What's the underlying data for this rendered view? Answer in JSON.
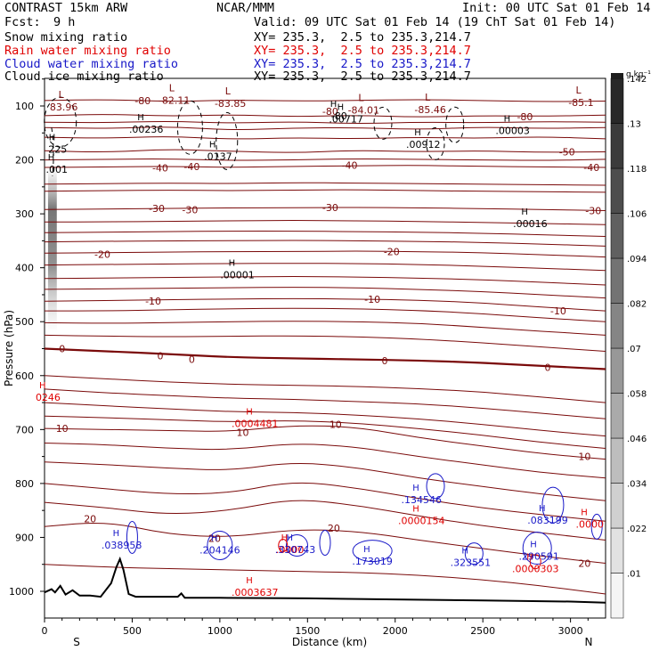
{
  "header": {
    "title": "CONTRAST 15km ARW",
    "center": "NCAR/MMM",
    "init": "Init: 00 UTC Sat 01 Feb 14",
    "fcst_label": "Fcst:",
    "fcst_value": "9 h",
    "valid": "Valid: 09 UTC Sat 01 Feb 14 (19 ChT Sat 01 Feb 14)",
    "fields": [
      {
        "name": "Snow mixing ratio",
        "xy": "XY= 235.3,  2.5 to 235.3,214.7",
        "color": "#000000"
      },
      {
        "name": "Rain water mixing ratio",
        "xy": "XY= 235.3,  2.5 to 235.3,214.7",
        "color": "#e00000"
      },
      {
        "name": "Cloud water mixing ratio",
        "xy": "XY= 235.3,  2.5 to 235.3,214.7",
        "color": "#1818c8"
      },
      {
        "name": "Cloud ice mixing ratio",
        "xy": "XY= 235.3,  2.5 to 235.3,214.7",
        "color": "#000000"
      }
    ]
  },
  "chart_data": {
    "type": "cross-section",
    "xlabel": "Distance (km)",
    "ylabel": "Pressure (hPa)",
    "xlim": [
      0,
      3200
    ],
    "ylim": [
      1060,
      50
    ],
    "xticks": [
      0,
      500,
      1000,
      1500,
      2000,
      2500,
      3000
    ],
    "yticks": [
      100,
      200,
      300,
      400,
      500,
      600,
      700,
      800,
      900,
      1000
    ],
    "x_end_labels": {
      "left": "S",
      "right": "N"
    },
    "colorbar": {
      "unit": "g kg⁻¹",
      "ticks": [
        ".01",
        ".022",
        ".034",
        ".046",
        ".058",
        ".07",
        ".082",
        ".094",
        ".106",
        ".118",
        ".13",
        ".142"
      ]
    },
    "temperature_contours_C": [
      -80,
      -70,
      -60,
      -50,
      -40,
      -30,
      -20,
      -10,
      0,
      10,
      20
    ],
    "temperature_labels": [
      {
        "text": "-80",
        "x": 560,
        "p": 90
      },
      {
        "text": "-80",
        "x": 2740,
        "p": 120
      },
      {
        "text": "-80",
        "x": 1630,
        "p": 110
      },
      {
        "text": "-50",
        "x": 2980,
        "p": 185
      },
      {
        "text": "-40",
        "x": 660,
        "p": 215
      },
      {
        "text": "-40",
        "x": 840,
        "p": 212
      },
      {
        "text": "-40",
        "x": 1740,
        "p": 210
      },
      {
        "text": "-40",
        "x": 3120,
        "p": 214
      },
      {
        "text": "-30",
        "x": 640,
        "p": 290
      },
      {
        "text": "-30",
        "x": 830,
        "p": 292
      },
      {
        "text": "-30",
        "x": 1630,
        "p": 288
      },
      {
        "text": "-30",
        "x": 3130,
        "p": 294
      },
      {
        "text": "-20",
        "x": 330,
        "p": 375
      },
      {
        "text": "-20",
        "x": 1980,
        "p": 370
      },
      {
        "text": "-10",
        "x": 620,
        "p": 462
      },
      {
        "text": "-10",
        "x": 1870,
        "p": 458
      },
      {
        "text": "-10",
        "x": 2930,
        "p": 480
      },
      {
        "text": "0",
        "x": 100,
        "p": 550
      },
      {
        "text": "0",
        "x": 660,
        "p": 563
      },
      {
        "text": "0",
        "x": 840,
        "p": 570
      },
      {
        "text": "0",
        "x": 1940,
        "p": 572
      },
      {
        "text": "0",
        "x": 2870,
        "p": 585
      },
      {
        "text": "10",
        "x": 100,
        "p": 698
      },
      {
        "text": "10",
        "x": 1130,
        "p": 705
      },
      {
        "text": "10",
        "x": 1660,
        "p": 690
      },
      {
        "text": "10",
        "x": 3080,
        "p": 750
      },
      {
        "text": "20",
        "x": 260,
        "p": 865
      },
      {
        "text": "20",
        "x": 970,
        "p": 902
      },
      {
        "text": "20",
        "x": 1650,
        "p": 883
      },
      {
        "text": "20",
        "x": 3080,
        "p": 948
      }
    ],
    "low_labels": [
      {
        "label": "L",
        "value": "83.96",
        "x": 110,
        "p": 100
      },
      {
        "label": "L",
        "value": "-82.11",
        "x": 740,
        "p": 88
      },
      {
        "label": "L",
        "value": "-83.85",
        "x": 1060,
        "p": 93
      },
      {
        "label": "L",
        "value": "-84.01",
        "x": 1820,
        "p": 106
      },
      {
        "label": "L",
        "value": "-85.46",
        "x": 2200,
        "p": 105
      },
      {
        "label": "L",
        "value": "-85.1",
        "x": 3060,
        "p": 92
      }
    ],
    "snow_max_labels": [
      {
        "value": ".00236",
        "x": 580,
        "p": 143
      },
      {
        "value": ".00717",
        "x": 1720,
        "p": 124
      },
      {
        "value": ".00912",
        "x": 2160,
        "p": 171
      },
      {
        "value": ".00003",
        "x": 2670,
        "p": 145
      },
      {
        "value": ".0137",
        "x": 990,
        "p": 193
      },
      {
        "value": ".00016",
        "x": 2770,
        "p": 318
      },
      {
        "value": ".00001",
        "x": 1100,
        "p": 413
      },
      {
        "value": "225",
        "x": 75,
        "p": 180
      },
      {
        "value": ".001",
        "x": 70,
        "p": 217
      },
      {
        "value": "-80",
        "x": 1680,
        "p": 118
      }
    ],
    "rain_max_labels": [
      {
        "value": ".0004481",
        "x": 1200,
        "p": 689
      },
      {
        "value": ".0000154",
        "x": 2150,
        "p": 869
      },
      {
        "value": ".0000303",
        "x": 2800,
        "p": 958
      },
      {
        "value": ".0003637",
        "x": 1200,
        "p": 1002
      },
      {
        "value": ".0000",
        "x": 3110,
        "p": 875
      },
      {
        "value": ".0000",
        "x": 1400,
        "p": 922
      },
      {
        "value": "0246",
        "x": 20,
        "p": 640
      }
    ],
    "cloud_water_max_labels": [
      {
        "value": ".038958",
        "x": 440,
        "p": 914
      },
      {
        "value": ".204146",
        "x": 1000,
        "p": 923
      },
      {
        "value": ".330743",
        "x": 1430,
        "p": 922
      },
      {
        "value": ".173019",
        "x": 1870,
        "p": 944
      },
      {
        "value": ".323551",
        "x": 2430,
        "p": 946
      },
      {
        "value": ".134546",
        "x": 2150,
        "p": 830
      },
      {
        "value": ".083199",
        "x": 2870,
        "p": 868
      },
      {
        "value": ".290591",
        "x": 2820,
        "p": 935
      }
    ],
    "terrain_pressure": {
      "x": [
        0,
        40,
        60,
        90,
        120,
        160,
        200,
        260,
        320,
        380,
        410,
        430,
        450,
        480,
        520,
        600,
        760,
        780,
        800,
        1000,
        1500,
        2000,
        2500,
        3000,
        3200
      ],
      "p": [
        1002,
        996,
        1002,
        990,
        1006,
        998,
        1008,
        1008,
        1010,
        985,
        955,
        940,
        960,
        1005,
        1010,
        1010,
        1010,
        1004,
        1012,
        1012,
        1013,
        1015,
        1017,
        1019,
        1021
      ]
    }
  }
}
